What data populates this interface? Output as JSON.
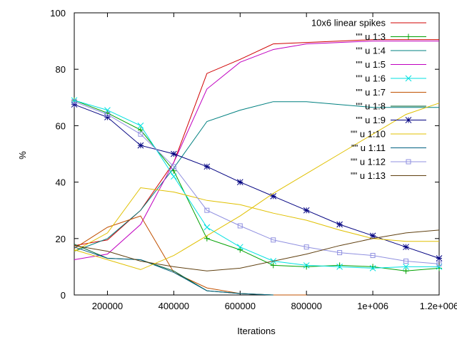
{
  "chart_data": {
    "type": "line",
    "title": "",
    "xlabel": "Iterations",
    "ylabel": "%",
    "xlim": [
      100000,
      1200000
    ],
    "ylim": [
      0,
      100
    ],
    "x_ticks": [
      200000,
      400000,
      600000,
      800000,
      1000000,
      1200000
    ],
    "x_tick_labels": [
      "200000",
      "400000",
      "600000",
      "800000",
      "1e+006",
      "1.2e+006"
    ],
    "y_ticks": [
      0,
      20,
      40,
      60,
      80,
      100
    ],
    "y_tick_labels": [
      "0",
      "20",
      "40",
      "60",
      "80",
      "100"
    ],
    "grid": false,
    "legend_position": "top-right",
    "x": [
      100000,
      200000,
      300000,
      400000,
      500000,
      600000,
      700000,
      800000,
      900000,
      1000000,
      1100000,
      1200000
    ],
    "series": [
      {
        "name": "10x6 linear spikes",
        "color": "#d00000",
        "marker": "none",
        "values": [
          17.5,
          19.5,
          30,
          47,
          78.5,
          83.5,
          89,
          89.5,
          90,
          90.5,
          90.5,
          90.5
        ]
      },
      {
        "name": "\"\" u 1:3",
        "color": "#00a000",
        "marker": "plus",
        "values": [
          69,
          64.5,
          58.5,
          44,
          20,
          16,
          10.5,
          10,
          10.5,
          10,
          8.5,
          9.5
        ]
      },
      {
        "name": "\"\" u 1:4",
        "color": "#008080",
        "marker": "none",
        "values": [
          15.5,
          20,
          30,
          45,
          61.5,
          65.5,
          68.5,
          68.5,
          67.5,
          66.5,
          66.5,
          66.5
        ]
      },
      {
        "name": "\"\" u 1:5",
        "color": "#c000c0",
        "marker": "none",
        "values": [
          12.5,
          14.5,
          25,
          47,
          73,
          82.5,
          87,
          89,
          89.5,
          90,
          90,
          90
        ]
      },
      {
        "name": "\"\" u 1:6",
        "color": "#00e0e0",
        "marker": "cross",
        "values": [
          69,
          65.5,
          60,
          42,
          24,
          17,
          12,
          10.5,
          10,
          9.5,
          10,
          10
        ]
      },
      {
        "name": "\"\" u 1:7",
        "color": "#c05000",
        "marker": "none",
        "values": [
          16.5,
          24,
          28,
          8,
          2.5,
          0.5,
          0,
          0,
          null,
          null,
          null,
          null
        ]
      },
      {
        "name": "\"\" u 1:8",
        "color": "#006030",
        "marker": "none",
        "values": [
          18,
          13,
          12.5,
          8.5,
          1.5,
          0.5,
          0,
          null,
          null,
          null,
          null,
          null
        ]
      },
      {
        "name": "\"\" u 1:9",
        "color": "#000080",
        "marker": "star",
        "values": [
          67.5,
          63,
          53,
          50,
          45.5,
          40,
          35,
          30,
          25,
          21,
          17,
          13
        ]
      },
      {
        "name": "\"\" u 1:10",
        "color": "#e0c000",
        "marker": "none",
        "values": [
          15.5,
          22,
          38,
          36.5,
          33.5,
          32,
          29,
          26.5,
          23,
          20,
          19,
          19
        ]
      },
      {
        "name": "\"\" u 1:11",
        "color": "#006080",
        "marker": "none",
        "values": [
          17,
          13,
          12.5,
          8,
          1.5,
          0.5,
          0,
          null,
          null,
          null,
          null,
          null
        ]
      },
      {
        "name": "\"\" u 1:12",
        "color": "#9090e0",
        "marker": "square",
        "values": [
          68.5,
          64,
          57,
          45.5,
          30,
          24.5,
          19.5,
          17,
          15,
          14,
          12,
          11
        ]
      },
      {
        "name": "\"\" u 1:13",
        "color": "#604010",
        "marker": "none",
        "values": [
          17.5,
          15.5,
          12,
          10,
          8.5,
          9.5,
          12,
          14.5,
          17.5,
          20,
          22,
          23
        ]
      }
    ],
    "extra_series": [
      {
        "color": "#e0c000",
        "marker": "none",
        "points": [
          [
            100000,
            16
          ],
          [
            200000,
            12.5
          ],
          [
            300000,
            9
          ],
          [
            400000,
            14
          ],
          [
            500000,
            21
          ],
          [
            600000,
            28
          ],
          [
            700000,
            36
          ],
          [
            800000,
            43
          ],
          [
            900000,
            50
          ],
          [
            1000000,
            57
          ],
          [
            1100000,
            64
          ],
          [
            1200000,
            68
          ]
        ]
      }
    ]
  }
}
